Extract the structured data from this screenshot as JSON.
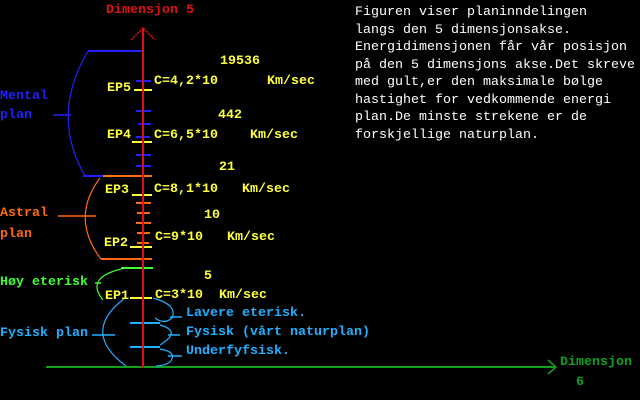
{
  "axes": {
    "vertical_label": "Dimensjon 5",
    "horizontal_label_1": "Dimensjon",
    "horizontal_label_2": "6"
  },
  "description_lines": [
    "Figuren viser planinndelingen",
    "langs den 5 dimensjonsakse.",
    "Energidimensjonen får vår posisjon",
    "på den 5 dimensjons akse.Det skreve",
    "med gult,er den maksimale bølge",
    "hastighet for vedkommende energi",
    "plan.De minste strekene er de",
    "forskjellige naturplan."
  ],
  "planes": {
    "mental": [
      "Mental",
      "plan"
    ],
    "astral": [
      "Astral",
      "plan"
    ],
    "hoy_eterisk": "Høy eterisk",
    "fysisk": "Fysisk plan"
  },
  "subplanes": [
    "Lavere eterisk.",
    "Fysisk (vårt naturplan)",
    "Underfyfsisk."
  ],
  "energy_points": [
    {
      "label": "EP5",
      "speed": "C=4,2*10",
      "exponent": "19536",
      "unit": "Km/sec"
    },
    {
      "label": "EP4",
      "speed": "C=6,5*10",
      "exponent": "442",
      "unit": "Km/sec"
    },
    {
      "label": "EP3",
      "speed": "C=8,1*10",
      "exponent": "21",
      "unit": "Km/sec"
    },
    {
      "label": "EP2",
      "speed": "C=9*10",
      "exponent": "10",
      "unit": "Km/sec"
    },
    {
      "label": "EP1",
      "speed": "C=3*10",
      "exponent": "5",
      "unit": "Km/sec"
    }
  ],
  "colors": {
    "axis_vertical": "#e01010",
    "axis_horizontal": "#10a020",
    "mental": "#2020ff",
    "astral": "#ff6a10",
    "eterisk": "#40ff30",
    "fysisk": "#20b0ff",
    "energy": "#ffff40",
    "text": "#ffffff"
  }
}
